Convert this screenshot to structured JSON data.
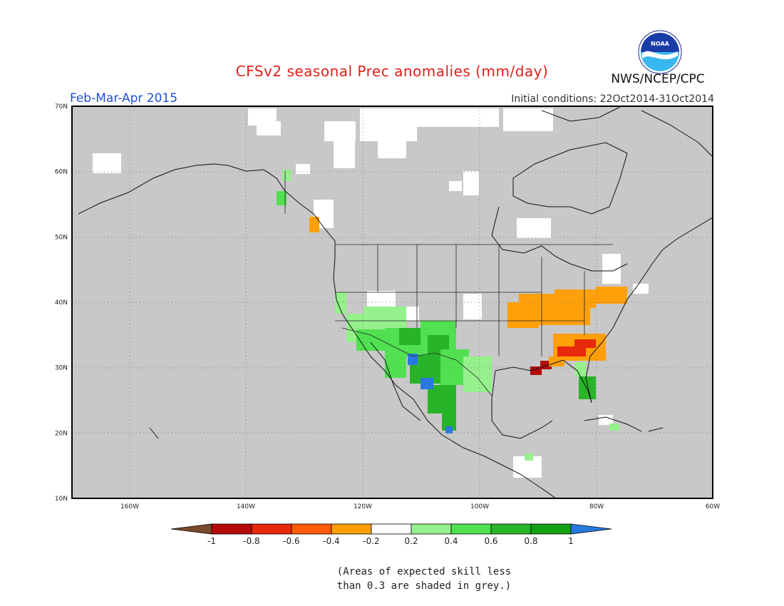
{
  "header": {
    "title": "CFSv2 seasonal Prec anomalies (mm/day)",
    "period": "Feb-Mar-Apr 2015",
    "initial_conditions": "Initial conditions: 22Oct2014-31Oct2014",
    "agency": "NWS/NCEP/CPC",
    "logo_text": "NOAA"
  },
  "map": {
    "region": "North America",
    "lon_range": [
      -170,
      -60
    ],
    "lat_range": [
      10,
      70
    ],
    "lat_ticks": [
      "70N",
      "60N",
      "50N",
      "40N",
      "30N",
      "20N",
      "10N"
    ],
    "lon_ticks": [
      "160W",
      "140W",
      "120W",
      "100W",
      "80W",
      "60W"
    ],
    "grid": "dotted",
    "low_skill_color": "#c8c8c8",
    "ocean_color": "#c8c8c8"
  },
  "legend": {
    "labels": [
      "-1",
      "-0.8",
      "-0.6",
      "-0.4",
      "-0.2",
      "0.2",
      "0.4",
      "0.6",
      "0.8",
      "1"
    ],
    "colors": [
      "#7a4a2a",
      "#b40a0a",
      "#e8280a",
      "#ff5a0a",
      "#ffa00a",
      "#ffffff",
      "#96f08c",
      "#50e050",
      "#28b428",
      "#14a014",
      "#2878e0"
    ],
    "note": [
      "(Areas of expected skill less",
      "than 0.3 are shaded in grey.)"
    ]
  }
}
